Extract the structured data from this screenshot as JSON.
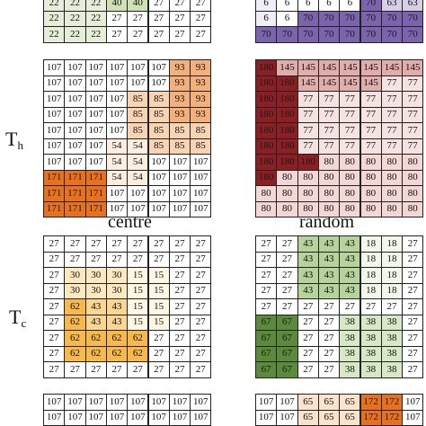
{
  "labels": {
    "th_main": "T",
    "th_sub": "h",
    "tc_main": "T",
    "tc_sub": "c",
    "centre": "centre",
    "random": "random"
  },
  "grids": [
    {
      "name": "centre-top-partial",
      "rows": [
        [
          22,
          22,
          22,
          40,
          40,
          27,
          27,
          27
        ],
        [
          22,
          22,
          22,
          27,
          27,
          27,
          27,
          27
        ],
        [
          22,
          22,
          22,
          27,
          27,
          27,
          27,
          27
        ]
      ],
      "colors": [
        [
          "#e6eed9",
          "#e6eed9",
          "#e6eed9",
          "#cfe0b2",
          "#cfe0b2",
          "#ffffff",
          "#ffffff",
          "#ffffff"
        ],
        [
          "#e6eed9",
          "#e6eed9",
          "#e6eed9",
          "#ffffff",
          "#ffffff",
          "#ffffff",
          "#ffffff",
          "#ffffff"
        ],
        [
          "#e6eed9",
          "#e6eed9",
          "#e6eed9",
          "#ffffff",
          "#ffffff",
          "#ffffff",
          "#ffffff",
          "#ffffff"
        ]
      ]
    },
    {
      "name": "random-top-partial",
      "rows": [
        [
          6,
          6,
          6,
          6,
          6,
          70,
          63,
          63
        ],
        [
          6,
          6,
          70,
          70,
          70,
          70,
          70,
          70
        ],
        [
          70,
          70,
          70,
          70,
          70,
          70,
          70,
          70
        ]
      ],
      "colors": [
        [
          "#efedf6",
          "#ffffff",
          "#ffffff",
          "#ffffff",
          "#ffffff",
          "#7b64ad",
          "#d6cfe6",
          "#d6cfe6"
        ],
        [
          "#efedf6",
          "#ffffff",
          "#7b64ad",
          "#7b64ad",
          "#7b64ad",
          "#7b64ad",
          "#7b64ad",
          "#7b64ad"
        ],
        [
          "#7b64ad",
          "#7b64ad",
          "#7b64ad",
          "#7b64ad",
          "#7b64ad",
          "#7b64ad",
          "#7b64ad",
          "#7b64ad"
        ]
      ]
    },
    {
      "name": "th-centre-grid",
      "rows": [
        [
          107,
          107,
          107,
          107,
          107,
          107,
          93,
          93
        ],
        [
          107,
          107,
          107,
          107,
          107,
          107,
          93,
          93
        ],
        [
          107,
          107,
          107,
          107,
          85,
          85,
          93,
          93
        ],
        [
          107,
          107,
          107,
          107,
          85,
          85,
          93,
          93
        ],
        [
          107,
          107,
          107,
          107,
          85,
          85,
          85,
          85
        ],
        [
          107,
          107,
          107,
          54,
          54,
          85,
          85,
          85
        ],
        [
          107,
          107,
          107,
          54,
          54,
          107,
          107,
          107
        ],
        [
          171,
          171,
          171,
          54,
          54,
          107,
          107,
          107
        ],
        [
          171,
          171,
          171,
          107,
          107,
          107,
          107,
          107
        ],
        [
          171,
          171,
          171,
          107,
          107,
          107,
          107,
          107
        ]
      ],
      "colors": [
        [
          "#ffffff",
          "#ffffff",
          "#ffffff",
          "#ffffff",
          "#ffffff",
          "#ffffff",
          "#f4b07a",
          "#f4b07a"
        ],
        [
          "#ffffff",
          "#ffffff",
          "#ffffff",
          "#ffffff",
          "#ffffff",
          "#ffffff",
          "#f4b07a",
          "#f4b07a"
        ],
        [
          "#ffffff",
          "#ffffff",
          "#ffffff",
          "#ffffff",
          "#f9d4b2",
          "#f9d4b2",
          "#f4b07a",
          "#f4b07a"
        ],
        [
          "#ffffff",
          "#ffffff",
          "#ffffff",
          "#ffffff",
          "#f9d4b2",
          "#f9d4b2",
          "#f4b07a",
          "#f4b07a"
        ],
        [
          "#ffffff",
          "#ffffff",
          "#ffffff",
          "#ffffff",
          "#f9d4b2",
          "#f9d4b2",
          "#f9d4b2",
          "#f9d4b2"
        ],
        [
          "#ffffff",
          "#ffffff",
          "#ffffff",
          "#fdeee0",
          "#fdeee0",
          "#f9d4b2",
          "#f9d4b2",
          "#f9d4b2"
        ],
        [
          "#ffffff",
          "#ffffff",
          "#ffffff",
          "#fdeee0",
          "#fdeee0",
          "#ffffff",
          "#ffffff",
          "#ffffff"
        ],
        [
          "#e8711c",
          "#e8711c",
          "#e8711c",
          "#fdeee0",
          "#fdeee0",
          "#ffffff",
          "#ffffff",
          "#ffffff"
        ],
        [
          "#e8711c",
          "#e8711c",
          "#e8711c",
          "#ffffff",
          "#ffffff",
          "#ffffff",
          "#ffffff",
          "#ffffff"
        ],
        [
          "#e8711c",
          "#e8711c",
          "#e8711c",
          "#ffffff",
          "#ffffff",
          "#ffffff",
          "#ffffff",
          "#ffffff"
        ]
      ]
    },
    {
      "name": "th-random-grid",
      "rows": [
        [
          180,
          145,
          145,
          145,
          145,
          145,
          145,
          145
        ],
        [
          180,
          180,
          145,
          145,
          145,
          145,
          77,
          77
        ],
        [
          180,
          180,
          77,
          77,
          77,
          77,
          77,
          77
        ],
        [
          180,
          180,
          77,
          77,
          77,
          77,
          77,
          77
        ],
        [
          180,
          180,
          77,
          77,
          77,
          77,
          77,
          77
        ],
        [
          180,
          180,
          77,
          77,
          77,
          77,
          77,
          77
        ],
        [
          180,
          180,
          180,
          80,
          80,
          80,
          80,
          80
        ],
        [
          180,
          80,
          80,
          80,
          80,
          80,
          80,
          80
        ],
        [
          80,
          80,
          80,
          80,
          80,
          80,
          80,
          80
        ],
        [
          80,
          80,
          80,
          80,
          80,
          80,
          80,
          80
        ]
      ],
      "colors": [
        [
          "#8c1f24",
          "#e1aeac",
          "#e1aeac",
          "#e1aeac",
          "#e1aeac",
          "#e1aeac",
          "#e1aeac",
          "#e1aeac"
        ],
        [
          "#8c1f24",
          "#8c1f24",
          "#e1aeac",
          "#e1aeac",
          "#e1aeac",
          "#e1aeac",
          "#f6e3e1",
          "#f6e3e1"
        ],
        [
          "#8c1f24",
          "#8c1f24",
          "#f6e3e1",
          "#f6e3e1",
          "#f6e3e1",
          "#f6e3e1",
          "#f6e3e1",
          "#f6e3e1"
        ],
        [
          "#8c1f24",
          "#8c1f24",
          "#f6e3e1",
          "#f6e3e1",
          "#f6e3e1",
          "#f6e3e1",
          "#f6e3e1",
          "#f6e3e1"
        ],
        [
          "#8c1f24",
          "#8c1f24",
          "#f6e3e1",
          "#f6e3e1",
          "#f6e3e1",
          "#f6e3e1",
          "#f6e3e1",
          "#f6e3e1"
        ],
        [
          "#8c1f24",
          "#8c1f24",
          "#f6e3e1",
          "#f6e3e1",
          "#f6e3e1",
          "#f6e3e1",
          "#f6e3e1",
          "#f6e3e1"
        ],
        [
          "#8c1f24",
          "#8c1f24",
          "#8c1f24",
          "#f2d7d5",
          "#f2d7d5",
          "#f2d7d5",
          "#f2d7d5",
          "#f2d7d5"
        ],
        [
          "#8c1f24",
          "#f2d7d5",
          "#f2d7d5",
          "#f2d7d5",
          "#f2d7d5",
          "#f2d7d5",
          "#f2d7d5",
          "#f2d7d5"
        ],
        [
          "#f2d7d5",
          "#f2d7d5",
          "#f2d7d5",
          "#f2d7d5",
          "#f2d7d5",
          "#f2d7d5",
          "#f2d7d5",
          "#f2d7d5"
        ],
        [
          "#f2d7d5",
          "#f2d7d5",
          "#f2d7d5",
          "#f2d7d5",
          "#f2d7d5",
          "#f2d7d5",
          "#f2d7d5",
          "#f2d7d5"
        ]
      ]
    },
    {
      "name": "tc-centre-grid",
      "rows": [
        [
          27,
          27,
          27,
          27,
          27,
          27,
          27,
          27
        ],
        [
          27,
          27,
          27,
          27,
          27,
          27,
          27,
          27
        ],
        [
          27,
          30,
          30,
          30,
          15,
          15,
          27,
          27
        ],
        [
          27,
          30,
          30,
          30,
          15,
          15,
          27,
          27
        ],
        [
          27,
          62,
          43,
          43,
          15,
          15,
          27,
          27
        ],
        [
          27,
          62,
          43,
          43,
          15,
          15,
          27,
          27
        ],
        [
          27,
          62,
          62,
          62,
          62,
          27,
          27,
          27
        ],
        [
          27,
          62,
          62,
          62,
          62,
          27,
          27,
          27
        ],
        [
          27,
          27,
          27,
          27,
          27,
          27,
          27,
          27
        ]
      ],
      "colors": [
        [
          "#ffffff",
          "#ffffff",
          "#ffffff",
          "#ffffff",
          "#ffffff",
          "#ffffff",
          "#ffffff",
          "#ffffff"
        ],
        [
          "#ffffff",
          "#ffffff",
          "#ffffff",
          "#ffffff",
          "#ffffff",
          "#ffffff",
          "#ffffff",
          "#ffffff"
        ],
        [
          "#ffffff",
          "#fde9bf",
          "#fde9bf",
          "#fde9bf",
          "#fff6e4",
          "#fff6e4",
          "#ffffff",
          "#ffffff"
        ],
        [
          "#ffffff",
          "#fde9bf",
          "#fde9bf",
          "#fde9bf",
          "#fff6e4",
          "#fff6e4",
          "#ffffff",
          "#ffffff"
        ],
        [
          "#ffffff",
          "#f7b94a",
          "#fbd592",
          "#fbd592",
          "#fff6e4",
          "#fff6e4",
          "#ffffff",
          "#ffffff"
        ],
        [
          "#ffffff",
          "#f7b94a",
          "#fbd592",
          "#fbd592",
          "#fff6e4",
          "#fff6e4",
          "#ffffff",
          "#ffffff"
        ],
        [
          "#ffffff",
          "#f7b94a",
          "#f7b94a",
          "#f7b94a",
          "#f7b94a",
          "#ffffff",
          "#ffffff",
          "#ffffff"
        ],
        [
          "#ffffff",
          "#f7b94a",
          "#f7b94a",
          "#f7b94a",
          "#f7b94a",
          "#ffffff",
          "#ffffff",
          "#ffffff"
        ],
        [
          "#ffffff",
          "#ffffff",
          "#ffffff",
          "#ffffff",
          "#ffffff",
          "#ffffff",
          "#ffffff",
          "#ffffff"
        ]
      ]
    },
    {
      "name": "tc-random-grid",
      "rows": [
        [
          27,
          27,
          43,
          43,
          43,
          18,
          18,
          27
        ],
        [
          27,
          27,
          43,
          43,
          43,
          18,
          18,
          27
        ],
        [
          27,
          27,
          43,
          43,
          43,
          18,
          18,
          27
        ],
        [
          27,
          27,
          43,
          43,
          43,
          18,
          18,
          27
        ],
        [
          27,
          27,
          27,
          27,
          27,
          27,
          27,
          27
        ],
        [
          67,
          67,
          27,
          27,
          38,
          38,
          38,
          27
        ],
        [
          67,
          67,
          27,
          27,
          38,
          38,
          38,
          27
        ],
        [
          67,
          67,
          27,
          27,
          38,
          38,
          38,
          27
        ],
        [
          67,
          67,
          27,
          27,
          38,
          38,
          38,
          27
        ]
      ],
      "colors": [
        [
          "#ffffff",
          "#ffffff",
          "#b5d39a",
          "#b5d39a",
          "#b5d39a",
          "#f2f7ec",
          "#f2f7ec",
          "#ffffff"
        ],
        [
          "#ffffff",
          "#ffffff",
          "#b5d39a",
          "#b5d39a",
          "#b5d39a",
          "#f2f7ec",
          "#f2f7ec",
          "#ffffff"
        ],
        [
          "#ffffff",
          "#ffffff",
          "#b5d39a",
          "#b5d39a",
          "#b5d39a",
          "#f2f7ec",
          "#f2f7ec",
          "#ffffff"
        ],
        [
          "#ffffff",
          "#ffffff",
          "#b5d39a",
          "#b5d39a",
          "#b5d39a",
          "#f2f7ec",
          "#f2f7ec",
          "#ffffff"
        ],
        [
          "#ffffff",
          "#ffffff",
          "#ffffff",
          "#ffffff",
          "#ffffff",
          "#ffffff",
          "#ffffff",
          "#ffffff"
        ],
        [
          "#5b8a3a",
          "#5b8a3a",
          "#ffffff",
          "#ffffff",
          "#d7e8c5",
          "#d7e8c5",
          "#d7e8c5",
          "#ffffff"
        ],
        [
          "#5b8a3a",
          "#5b8a3a",
          "#ffffff",
          "#ffffff",
          "#d7e8c5",
          "#d7e8c5",
          "#d7e8c5",
          "#ffffff"
        ],
        [
          "#5b8a3a",
          "#5b8a3a",
          "#ffffff",
          "#ffffff",
          "#d7e8c5",
          "#d7e8c5",
          "#d7e8c5",
          "#ffffff"
        ],
        [
          "#5b8a3a",
          "#5b8a3a",
          "#ffffff",
          "#ffffff",
          "#d7e8c5",
          "#d7e8c5",
          "#d7e8c5",
          "#ffffff"
        ]
      ]
    },
    {
      "name": "bottom-centre-partial",
      "rows": [
        [
          107,
          107,
          107,
          107,
          107,
          107,
          107,
          107
        ],
        [
          107,
          107,
          107,
          107,
          107,
          107,
          107,
          107
        ]
      ],
      "colors": [
        [
          "#ffffff",
          "#ffffff",
          "#ffffff",
          "#ffffff",
          "#ffffff",
          "#ffffff",
          "#ffffff",
          "#ffffff"
        ],
        [
          "#ffffff",
          "#ffffff",
          "#ffffff",
          "#ffffff",
          "#ffffff",
          "#ffffff",
          "#ffffff",
          "#ffffff"
        ]
      ]
    },
    {
      "name": "bottom-random-partial",
      "rows": [
        [
          107,
          107,
          65,
          65,
          65,
          172,
          172,
          107
        ],
        [
          107,
          107,
          65,
          65,
          65,
          172,
          172,
          107
        ]
      ],
      "colors": [
        [
          "#ffffff",
          "#ffffff",
          "#fde2cc",
          "#fde2cc",
          "#fde2cc",
          "#e8711c",
          "#e8711c",
          "#ffffff"
        ],
        [
          "#ffffff",
          "#ffffff",
          "#fde2cc",
          "#fde2cc",
          "#fde2cc",
          "#e8711c",
          "#e8711c",
          "#ffffff"
        ]
      ]
    }
  ]
}
